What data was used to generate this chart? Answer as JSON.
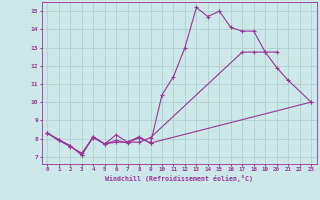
{
  "xlabel": "Windchill (Refroidissement éolien,°C)",
  "background_color": "#cce8e8",
  "line_color": "#993399",
  "grid_color": "#aacccc",
  "xlim": [
    -0.5,
    23.5
  ],
  "ylim": [
    6.6,
    15.5
  ],
  "yticks": [
    7,
    8,
    9,
    10,
    11,
    12,
    13,
    14,
    15
  ],
  "xticks": [
    0,
    1,
    2,
    3,
    4,
    5,
    6,
    7,
    8,
    9,
    10,
    11,
    12,
    13,
    14,
    15,
    16,
    17,
    18,
    19,
    20,
    21,
    22,
    23
  ],
  "s1_x": [
    0,
    1,
    2,
    3,
    4,
    5,
    6,
    7,
    8,
    9,
    10,
    11,
    12,
    13,
    14,
    15,
    16,
    17,
    18,
    19,
    20
  ],
  "s1_y": [
    8.3,
    7.9,
    7.6,
    7.1,
    8.1,
    7.7,
    7.8,
    7.8,
    8.1,
    7.75,
    10.4,
    11.4,
    13.0,
    15.2,
    14.7,
    15.0,
    14.1,
    13.9,
    13.9,
    12.75,
    12.75
  ],
  "s2_x": [
    0,
    2,
    3,
    4,
    5,
    6,
    7,
    8,
    9,
    17,
    18,
    19,
    20,
    21,
    23
  ],
  "s2_y": [
    8.3,
    7.6,
    7.1,
    8.1,
    7.7,
    8.2,
    7.8,
    7.8,
    8.05,
    12.75,
    12.75,
    12.75,
    11.9,
    11.2,
    10.0
  ],
  "s3_x": [
    0,
    1,
    2,
    3,
    4,
    5,
    6,
    7,
    8,
    9,
    23
  ],
  "s3_y": [
    8.3,
    7.9,
    7.55,
    7.2,
    8.05,
    7.7,
    7.9,
    7.75,
    8.05,
    7.75,
    10.0
  ]
}
